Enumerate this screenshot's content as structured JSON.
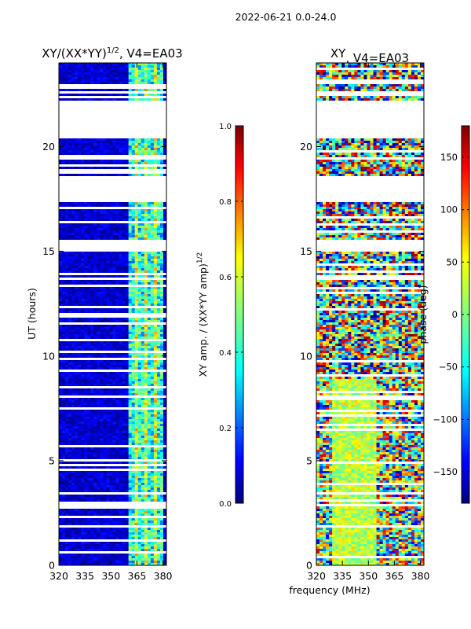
{
  "chart_data": {
    "suptitle": "2022-06-21 0.0-24.0",
    "xlabel": "frequency (MHz)",
    "ylabel": "UT (hours)",
    "x_ticks": [
      320,
      335,
      350,
      365,
      380
    ],
    "x_range": [
      320,
      382
    ],
    "y_ticks": [
      0,
      5,
      10,
      15,
      20
    ],
    "y_range": [
      0,
      24
    ],
    "panels": [
      {
        "type": "heatmap",
        "title_main": "XY/(XX*YY)",
        "title_sup": "1/2",
        "title_rest": ", V4=EA03",
        "quantity": "normalized XY amplitude",
        "colorbar": {
          "label_main": "XY amp. / (XX*YY amp)",
          "label_sup": "1/2",
          "range": [
            0.0,
            1.0
          ],
          "ticks": [
            "0.0",
            "0.2",
            "0.4",
            "0.6",
            "0.8",
            "1.0"
          ],
          "tick_values": [
            0.0,
            0.2,
            0.4,
            0.6,
            0.8,
            1.0
          ]
        }
      },
      {
        "type": "heatmap",
        "title_main": "XY",
        "title_sup": "",
        "title_rest": ", V4=EA03",
        "quantity": "XY phase",
        "colorbar": {
          "label_main": "phase (deg)",
          "label_sup": "",
          "range": [
            -180,
            180
          ],
          "ticks": [
            "−150",
            "−100",
            "−50",
            "0",
            "50",
            "100",
            "150"
          ],
          "tick_values": [
            -150,
            -100,
            -50,
            0,
            50,
            100,
            150
          ]
        }
      }
    ],
    "flagged_gaps_hours": [
      [
        20.6,
        22.2
      ],
      [
        17.4,
        18.7
      ],
      [
        15.0,
        15.6
      ]
    ],
    "colormap": [
      "#00007f",
      "#0000ff",
      "#007fff",
      "#00ffff",
      "#7fff7f",
      "#ffff00",
      "#ff7f00",
      "#ff0000",
      "#7f0000"
    ]
  }
}
